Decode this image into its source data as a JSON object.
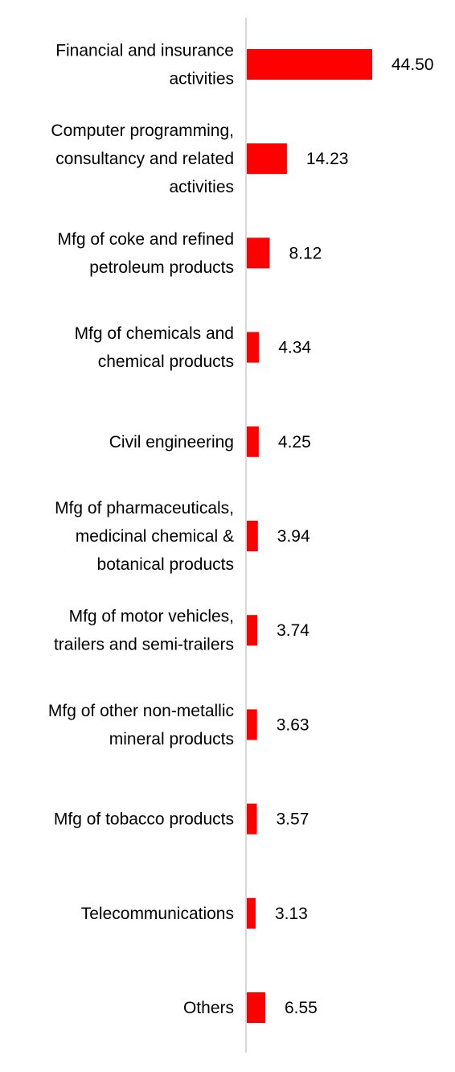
{
  "chart_data": {
    "type": "bar",
    "orientation": "horizontal",
    "categories": [
      [
        "Financial and insurance",
        "activities"
      ],
      [
        "Computer programming,",
        "consultancy and related",
        "activities"
      ],
      [
        "Mfg of coke and refined",
        "petroleum products"
      ],
      [
        "Mfg of chemicals and",
        "chemical products"
      ],
      [
        "Civil engineering"
      ],
      [
        "Mfg of pharmaceuticals,",
        "medicinal chemical &",
        "botanical products"
      ],
      [
        "Mfg of motor vehicles,",
        "trailers and semi-trailers"
      ],
      [
        "Mfg of other non-metallic",
        "mineral products"
      ],
      [
        "Mfg of tobacco products"
      ],
      [
        "Telecommunications"
      ],
      [
        "Others"
      ]
    ],
    "values": [
      44.5,
      14.23,
      8.12,
      4.34,
      4.25,
      3.94,
      3.74,
      3.63,
      3.57,
      3.13,
      6.55
    ],
    "value_labels": [
      "44.50",
      "14.23",
      "8.12",
      "4.34",
      "4.25",
      "3.94",
      "3.74",
      "3.63",
      "3.57",
      "3.13",
      "6.55"
    ],
    "xlim": [
      0,
      44.5
    ],
    "grid": false,
    "legend": "none",
    "bar_color": "#ff0000",
    "axis_color": "#d9d9d9"
  }
}
